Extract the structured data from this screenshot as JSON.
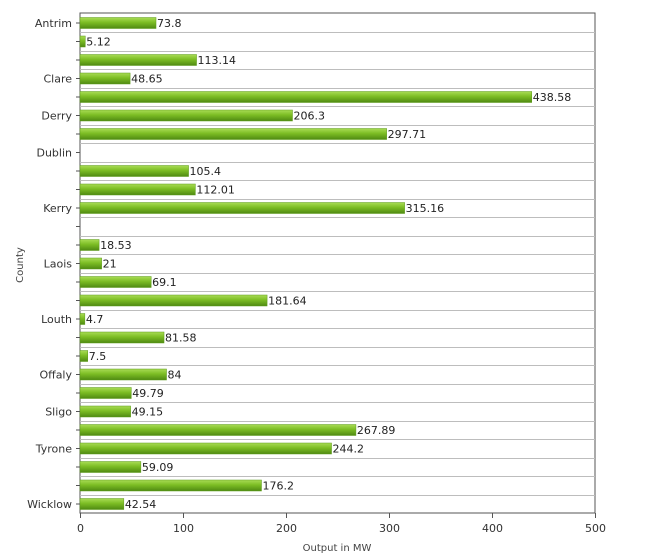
{
  "chart_data": {
    "type": "bar",
    "orientation": "horizontal",
    "xlabel": "Output in MW",
    "ylabel": "County",
    "xlim": [
      0,
      500
    ],
    "xticks": [
      0,
      100,
      200,
      300,
      400,
      500
    ],
    "grid": "horizontal",
    "legend": "none",
    "bar_color": "#7cbd24",
    "categories": [
      {
        "label": "Antrim",
        "value": 73.8,
        "value_label": "73.8"
      },
      {
        "label": "",
        "value": 5.12,
        "value_label": "5.12"
      },
      {
        "label": "",
        "value": 113.14,
        "value_label": "113.14"
      },
      {
        "label": "Clare",
        "value": 48.65,
        "value_label": "48.65"
      },
      {
        "label": "",
        "value": 438.58,
        "value_label": "438.58"
      },
      {
        "label": "Derry",
        "value": 206.3,
        "value_label": "206.3"
      },
      {
        "label": "",
        "value": 297.71,
        "value_label": "297.71"
      },
      {
        "label": "Dublin",
        "value": null,
        "value_label": ""
      },
      {
        "label": "",
        "value": 105.4,
        "value_label": "105.4"
      },
      {
        "label": "",
        "value": 112.01,
        "value_label": "112.01"
      },
      {
        "label": "Kerry",
        "value": 315.16,
        "value_label": "315.16"
      },
      {
        "label": "",
        "value": null,
        "value_label": ""
      },
      {
        "label": "",
        "value": 18.53,
        "value_label": "18.53"
      },
      {
        "label": "Laois",
        "value": 21,
        "value_label": "21"
      },
      {
        "label": "",
        "value": 69.1,
        "value_label": "69.1"
      },
      {
        "label": "",
        "value": 181.64,
        "value_label": "181.64"
      },
      {
        "label": "Louth",
        "value": 4.7,
        "value_label": "4.7"
      },
      {
        "label": "",
        "value": 81.58,
        "value_label": "81.58"
      },
      {
        "label": "",
        "value": 7.5,
        "value_label": "7.5"
      },
      {
        "label": "Offaly",
        "value": 84,
        "value_label": "84"
      },
      {
        "label": "",
        "value": 49.79,
        "value_label": "49.79"
      },
      {
        "label": "Sligo",
        "value": 49.15,
        "value_label": "49.15"
      },
      {
        "label": "",
        "value": 267.89,
        "value_label": "267.89"
      },
      {
        "label": "Tyrone",
        "value": 244.2,
        "value_label": "244.2"
      },
      {
        "label": "",
        "value": 59.09,
        "value_label": "59.09"
      },
      {
        "label": "",
        "value": 176.2,
        "value_label": "176.2"
      },
      {
        "label": "Wicklow",
        "value": 42.54,
        "value_label": "42.54"
      }
    ]
  }
}
